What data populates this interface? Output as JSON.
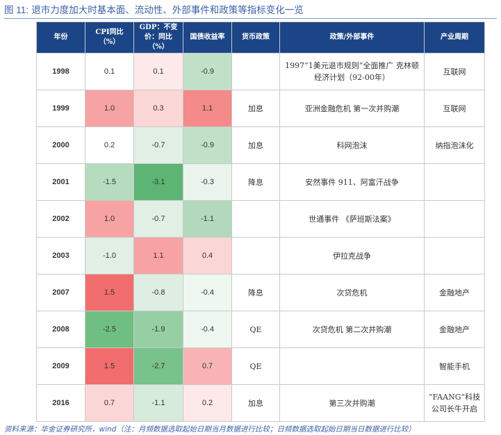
{
  "figure": {
    "label": "图 11:",
    "title": "退市力度加大时基本面、流动性、外部事件和政策等指标变化一览"
  },
  "table": {
    "headers": {
      "year": "年份",
      "cpi": "CPI同比（%）",
      "gdp": "GDP：不变价：同比（%）",
      "bond": "国债收益率",
      "monetary": "货币政策",
      "events": "政策/外部事件",
      "cycle": "产业周期"
    },
    "rows": [
      {
        "year": "1998",
        "cpi": "0.1",
        "gdp": "0.1",
        "bond": "-0.9",
        "monetary": "",
        "events": "1997“1美元退市规则”全面推广 克林顿经济计划（92-00年）",
        "cycle": "互联网"
      },
      {
        "year": "1999",
        "cpi": "1.0",
        "gdp": "0.3",
        "bond": "1.1",
        "monetary": "加息",
        "events": "亚洲金融危机 第一次并购潮",
        "cycle": "互联网"
      },
      {
        "year": "2000",
        "cpi": "0.2",
        "gdp": "-0.7",
        "bond": "-0.9",
        "monetary": "加息",
        "events": "科网泡沫",
        "cycle": "纳指泡沫化"
      },
      {
        "year": "2001",
        "cpi": "-1.5",
        "gdp": "-3.1",
        "bond": "-0.3",
        "monetary": "降息",
        "events": "安然事件 911、阿富汗战争",
        "cycle": ""
      },
      {
        "year": "2002",
        "cpi": "1.0",
        "gdp": "-0.7",
        "bond": "-1.1",
        "monetary": "",
        "events": "世通事件 《萨班斯法案》",
        "cycle": ""
      },
      {
        "year": "2003",
        "cpi": "-1.0",
        "gdp": "1.1",
        "bond": "0.4",
        "monetary": "",
        "events": "伊拉克战争",
        "cycle": ""
      },
      {
        "year": "2007",
        "cpi": "1.5",
        "gdp": "-0.8",
        "bond": "-0.4",
        "monetary": "降息",
        "events": "次贷危机",
        "cycle": "金融地产"
      },
      {
        "year": "2008",
        "cpi": "-2.5",
        "gdp": "-1.9",
        "bond": "-0.4",
        "monetary": "QE",
        "events": "次贷危机 第二次并购潮",
        "cycle": "金融地产"
      },
      {
        "year": "2009",
        "cpi": "1.5",
        "gdp": "-2.7",
        "bond": "0.7",
        "monetary": "QE",
        "events": "",
        "cycle": "智能手机"
      },
      {
        "year": "2016",
        "cpi": "0.7",
        "gdp": "-1.1",
        "bond": "0.2",
        "monetary": "加息",
        "events": "第三次并购潮",
        "cycle": "“FAANG”科技公司长牛开启"
      }
    ]
  },
  "colors": {
    "header_bg": "#1c4587",
    "year_text": "#c00000",
    "title_text": "#3b62a8",
    "cell_colors": {
      "cpi": [
        "#ffffff",
        "#f7a3a3",
        "#ffffff",
        "#b6dcbf",
        "#f7a3a3",
        "#e1efe4",
        "#f26d6d",
        "#6fbf83",
        "#f26d6d",
        "#fbd6d6"
      ],
      "gdp": [
        "#fde9e9",
        "#fbd6d6",
        "#e1efe4",
        "#5db574",
        "#e1efe4",
        "#f7a3a3",
        "#dfeee3",
        "#97cfa5",
        "#78c28b",
        "#d6ebdc"
      ],
      "bond": [
        "#c1e0c8",
        "#f58a8a",
        "#c1e0c8",
        "#eaf4ec",
        "#b3d9bd",
        "#fbd6d6",
        "#eef7f0",
        "#eef7f0",
        "#f8b4b4",
        "#fde9e9"
      ]
    }
  },
  "source_note": "资料来源：华金证券研究所，wind（注：月频数据选取起始日期当月数据进行比较；日频数据选取起始日期当日数据进行比较）"
}
